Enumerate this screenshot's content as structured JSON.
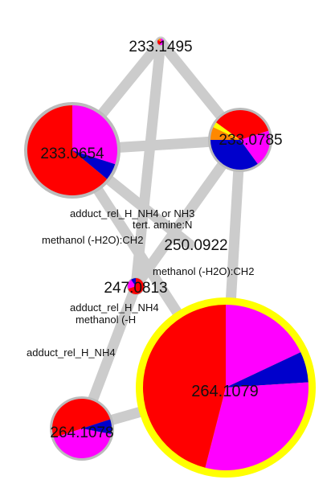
{
  "colors": {
    "background": "#ffffff",
    "edge": "#cccccc",
    "node_ring_default": "#bbbbbb",
    "node_ring_highlight": "#ffff00",
    "red": "#ff0000",
    "magenta": "#ff00ff",
    "blue": "#0000cc",
    "yellow": "#ffff00",
    "orange": "#ff8800"
  },
  "nodes": {
    "n233_1495": {
      "label": "233.1495",
      "ring": "node_ring_default",
      "slices": [
        {
          "color": "magenta",
          "value": 0.55
        },
        {
          "color": "red",
          "value": 0.3
        },
        {
          "color": "orange",
          "value": 0.15
        }
      ]
    },
    "n233_0654": {
      "label": "233.0654",
      "ring": "node_ring_default",
      "slices": [
        {
          "color": "magenta",
          "value": 0.3
        },
        {
          "color": "blue",
          "value": 0.06
        },
        {
          "color": "red",
          "value": 0.64
        }
      ]
    },
    "n233_0785": {
      "label": "233.0785",
      "ring": "node_ring_default",
      "slices": [
        {
          "color": "red",
          "value": 0.2
        },
        {
          "color": "magenta",
          "value": 0.2
        },
        {
          "color": "blue",
          "value": 0.35
        },
        {
          "color": "orange",
          "value": 0.07
        },
        {
          "color": "yellow",
          "value": 0.03
        },
        {
          "color": "red",
          "value": 0.15
        }
      ]
    },
    "n250_0922": {
      "label": "250.0922"
    },
    "n247_0813": {
      "label": "247.0813",
      "ring": "node_ring_default",
      "slices": [
        {
          "color": "red",
          "value": 0.7
        },
        {
          "color": "magenta",
          "value": 0.2
        },
        {
          "color": "blue",
          "value": 0.1
        }
      ]
    },
    "n264_1079": {
      "label": "264.1079",
      "ring": "node_ring_highlight",
      "slices": [
        {
          "color": "magenta",
          "value": 0.18
        },
        {
          "color": "blue",
          "value": 0.06
        },
        {
          "color": "magenta",
          "value": 0.3
        },
        {
          "color": "red",
          "value": 0.46
        }
      ]
    },
    "n264_1078": {
      "label": "264.1078",
      "ring": "node_ring_default",
      "slices": [
        {
          "color": "red",
          "value": 0.2
        },
        {
          "color": "blue",
          "value": 0.08
        },
        {
          "color": "magenta",
          "value": 0.42
        },
        {
          "color": "red",
          "value": 0.3
        }
      ]
    }
  },
  "edges": [
    {
      "from": "n233_1495",
      "to": "n233_0654"
    },
    {
      "from": "n233_1495",
      "to": "n233_0785"
    },
    {
      "from": "n233_1495",
      "to": "n247_0813"
    },
    {
      "from": "n233_0654",
      "to": "n233_0785"
    },
    {
      "from": "n233_0654",
      "to": "n250_0922"
    },
    {
      "from": "n233_0654",
      "to": "n264_1079"
    },
    {
      "from": "n233_0785",
      "to": "n247_0813"
    },
    {
      "from": "n233_0785",
      "to": "n264_1079"
    },
    {
      "from": "n247_0813",
      "to": "n264_1078"
    },
    {
      "from": "n264_1078",
      "to": "n264_1079"
    }
  ],
  "edge_labels": {
    "adduct_nh4_nh3": "adduct_rel_H_NH4 or NH3",
    "tert_amine": "tert. amine:N",
    "methanol_ch2_a": "methanol (-H2O):CH2",
    "methanol_ch2_b": "methanol (-H2O):CH2",
    "adduct_nh4_a": "adduct_rel_H_NH4",
    "methanol_partial": "methanol (-H",
    "adduct_nh4_b": "adduct_rel_H_NH4"
  }
}
